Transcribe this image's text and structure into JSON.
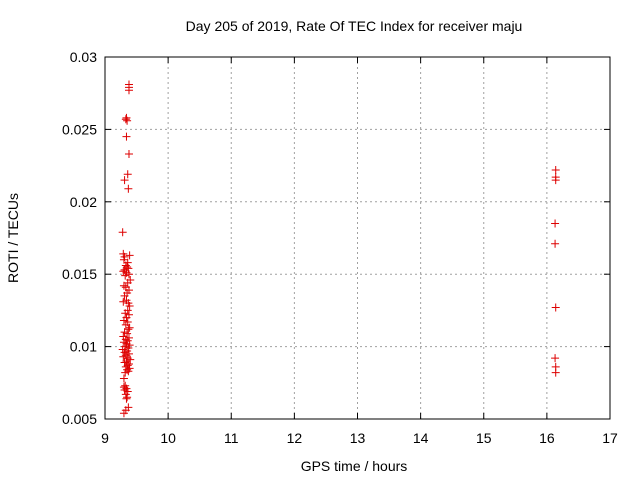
{
  "chart_data": {
    "type": "scatter",
    "title": "Day 205 of 2019, Rate Of TEC Index for receiver maju",
    "xlabel": "GPS time / hours",
    "ylabel": "ROTI / TECUs",
    "xlim": [
      9,
      17
    ],
    "ylim": [
      0.005,
      0.03
    ],
    "xticks": [
      9,
      10,
      11,
      12,
      13,
      14,
      15,
      16,
      17
    ],
    "xtick_labels": [
      "9",
      "10",
      "11",
      "12",
      "13",
      "14",
      "15",
      "16",
      "17"
    ],
    "yticks": [
      0.005,
      0.01,
      0.015,
      0.02,
      0.025,
      0.03
    ],
    "ytick_labels": [
      "0.005",
      "0.01",
      "0.015",
      "0.02",
      "0.025",
      "0.03"
    ],
    "grid": true,
    "marker": "+",
    "color": "#dd0000",
    "series": [
      {
        "name": "ROTI",
        "points": [
          [
            9.38,
            0.0281
          ],
          [
            9.38,
            0.0279
          ],
          [
            9.38,
            0.0277
          ],
          [
            9.34,
            0.0258
          ],
          [
            9.33,
            0.0257
          ],
          [
            9.35,
            0.0256
          ],
          [
            9.34,
            0.0245
          ],
          [
            9.38,
            0.0233
          ],
          [
            9.36,
            0.0219
          ],
          [
            9.31,
            0.0215
          ],
          [
            9.37,
            0.0209
          ],
          [
            9.28,
            0.0179
          ],
          [
            9.39,
            0.0163
          ],
          [
            9.29,
            0.0164
          ],
          [
            9.31,
            0.0162
          ],
          [
            9.3,
            0.016
          ],
          [
            9.36,
            0.0158
          ],
          [
            9.33,
            0.0156
          ],
          [
            9.35,
            0.0155
          ],
          [
            9.37,
            0.0154
          ],
          [
            9.31,
            0.0153
          ],
          [
            9.29,
            0.0152
          ],
          [
            9.34,
            0.0151
          ],
          [
            9.38,
            0.015
          ],
          [
            9.32,
            0.0149
          ],
          [
            9.4,
            0.0146
          ],
          [
            9.36,
            0.0144
          ],
          [
            9.3,
            0.0142
          ],
          [
            9.33,
            0.0141
          ],
          [
            9.38,
            0.0139
          ],
          [
            9.35,
            0.0137
          ],
          [
            9.31,
            0.0135
          ],
          [
            9.29,
            0.0131
          ],
          [
            9.34,
            0.0132
          ],
          [
            9.37,
            0.013
          ],
          [
            9.39,
            0.0128
          ],
          [
            9.36,
            0.0125
          ],
          [
            9.32,
            0.0123
          ],
          [
            9.38,
            0.0122
          ],
          [
            9.34,
            0.012
          ],
          [
            9.3,
            0.0118
          ],
          [
            9.36,
            0.0117
          ],
          [
            9.33,
            0.0115
          ],
          [
            9.39,
            0.0113
          ],
          [
            9.37,
            0.0112
          ],
          [
            9.31,
            0.011
          ],
          [
            9.35,
            0.0109
          ],
          [
            9.29,
            0.0107
          ],
          [
            9.38,
            0.0106
          ],
          [
            9.33,
            0.0105
          ],
          [
            9.36,
            0.0104
          ],
          [
            9.3,
            0.0103
          ],
          [
            9.34,
            0.0102
          ],
          [
            9.39,
            0.0101
          ],
          [
            9.32,
            0.01
          ],
          [
            9.37,
            0.0099
          ],
          [
            9.28,
            0.0098
          ],
          [
            9.35,
            0.0097
          ],
          [
            9.31,
            0.0096
          ],
          [
            9.38,
            0.0095
          ],
          [
            9.33,
            0.0094
          ],
          [
            9.29,
            0.0093
          ],
          [
            9.36,
            0.0092
          ],
          [
            9.4,
            0.0091
          ],
          [
            9.34,
            0.009
          ],
          [
            9.31,
            0.0089
          ],
          [
            9.38,
            0.0088
          ],
          [
            9.36,
            0.0087
          ],
          [
            9.33,
            0.0086
          ],
          [
            9.39,
            0.0085
          ],
          [
            9.35,
            0.0084
          ],
          [
            9.37,
            0.0083
          ],
          [
            9.32,
            0.0082
          ],
          [
            9.3,
            0.0078
          ],
          [
            9.32,
            0.0073
          ],
          [
            9.3,
            0.0072
          ],
          [
            9.34,
            0.0071
          ],
          [
            9.31,
            0.007
          ],
          [
            9.36,
            0.0069
          ],
          [
            9.33,
            0.0067
          ],
          [
            9.35,
            0.0065
          ],
          [
            9.34,
            0.0064
          ],
          [
            9.37,
            0.0058
          ],
          [
            9.33,
            0.0056
          ],
          [
            9.3,
            0.0054
          ],
          [
            16.14,
            0.0222
          ],
          [
            16.14,
            0.0217
          ],
          [
            16.14,
            0.0215
          ],
          [
            16.13,
            0.0185
          ],
          [
            16.13,
            0.0171
          ],
          [
            16.14,
            0.0127
          ],
          [
            16.13,
            0.0092
          ],
          [
            16.14,
            0.0086
          ],
          [
            16.14,
            0.0082
          ]
        ]
      }
    ]
  }
}
